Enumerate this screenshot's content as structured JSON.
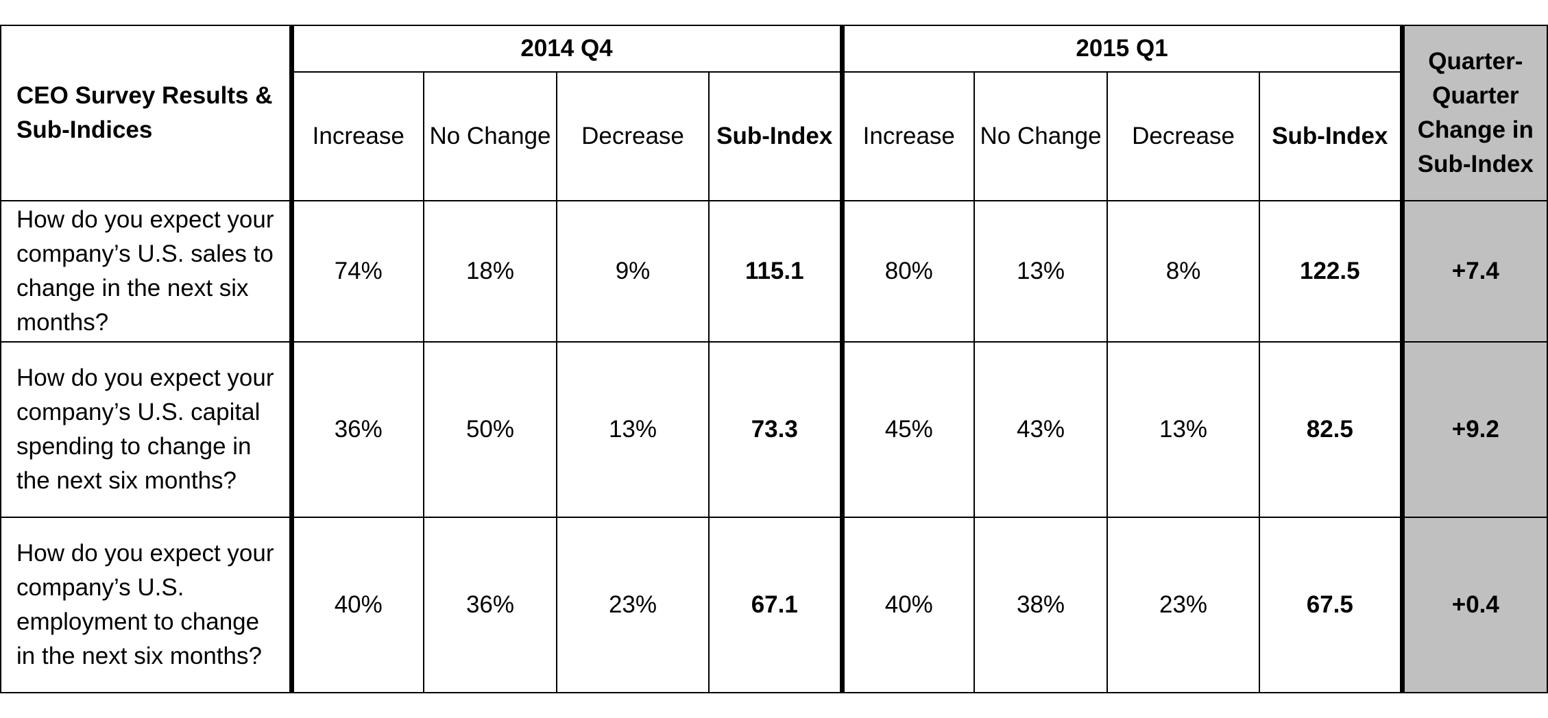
{
  "table": {
    "corner_label": "CEO Survey Results & Sub-Indices",
    "periods": [
      {
        "label": "2014 Q4"
      },
      {
        "label": "2015 Q1"
      }
    ],
    "subheaders": {
      "increase": "Increase",
      "no_change": "No Change",
      "decrease": "Decrease",
      "sub_index": "Sub-Index"
    },
    "change_header": "Quarter-Quarter Change in Sub-Index",
    "rows": [
      {
        "question": "How do you expect your company’s U.S. sales to change in the next six months?",
        "q4": {
          "increase": "74%",
          "no_change": "18%",
          "decrease": "9%",
          "sub_index": "115.1"
        },
        "q1": {
          "increase": "80%",
          "no_change": "13%",
          "decrease": "8%",
          "sub_index": "122.5"
        },
        "change": "+7.4"
      },
      {
        "question": "How do you expect your company’s U.S. capital spending to change in the next six months?",
        "q4": {
          "increase": "36%",
          "no_change": "50%",
          "decrease": "13%",
          "sub_index": "73.3"
        },
        "q1": {
          "increase": "45%",
          "no_change": "43%",
          "decrease": "13%",
          "sub_index": "82.5"
        },
        "change": "+9.2"
      },
      {
        "question": "How do you expect your company’s U.S. employment to change in the next six months?",
        "q4": {
          "increase": "40%",
          "no_change": "36%",
          "decrease": "23%",
          "sub_index": "67.1"
        },
        "q1": {
          "increase": "40%",
          "no_change": "38%",
          "decrease": "23%",
          "sub_index": "67.5"
        },
        "change": "+0.4"
      }
    ]
  }
}
